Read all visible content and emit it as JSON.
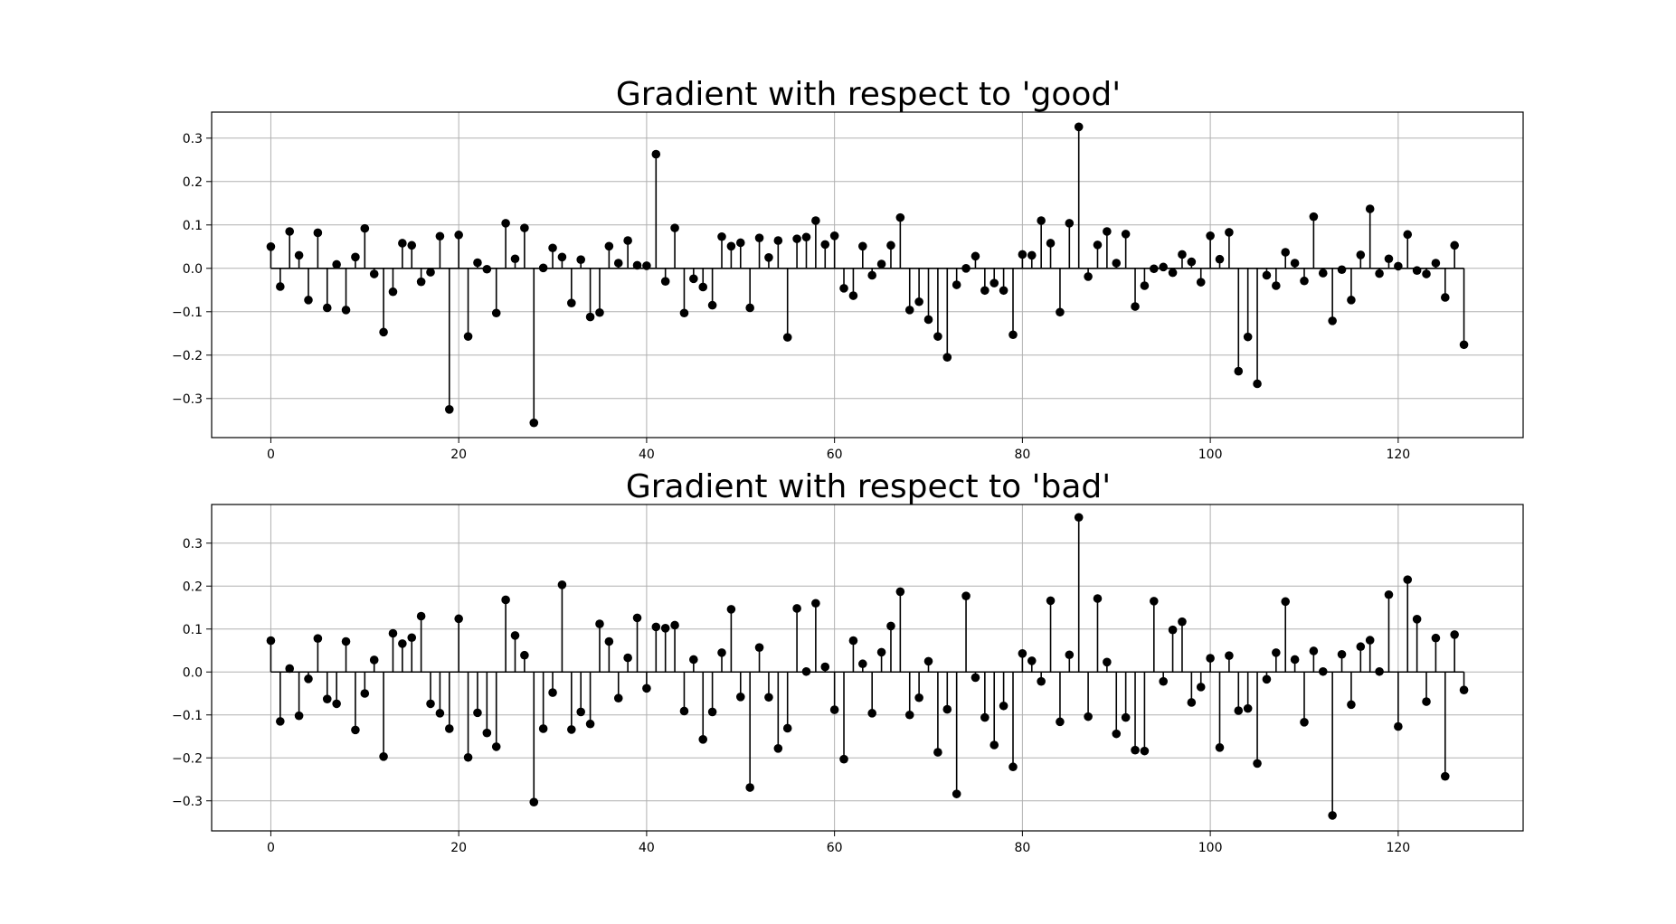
{
  "chart_data": [
    {
      "type": "stem",
      "title": "Gradient with respect to 'good'",
      "xlabel": "",
      "ylabel": "",
      "xlim": [
        -6.3,
        133.3
      ],
      "ylim": [
        -0.39,
        0.36
      ],
      "xticks": [
        0,
        20,
        40,
        60,
        80,
        100,
        120
      ],
      "xtick_labels": [
        "0",
        "20",
        "40",
        "60",
        "80",
        "100",
        "120"
      ],
      "yticks": [
        -0.3,
        -0.2,
        -0.1,
        0.0,
        0.1,
        0.2,
        0.3
      ],
      "ytick_labels": [
        "−0.3",
        "−0.2",
        "−0.1",
        "0.0",
        "0.1",
        "0.2",
        "0.3"
      ],
      "grid": true,
      "color": "#000000",
      "values": [
        0.05,
        -0.042,
        0.085,
        0.03,
        -0.073,
        0.082,
        -0.091,
        0.009,
        -0.096,
        0.026,
        0.092,
        -0.013,
        -0.147,
        -0.054,
        0.058,
        0.053,
        -0.031,
        -0.009,
        0.074,
        -0.325,
        0.077,
        -0.157,
        0.013,
        -0.002,
        -0.103,
        0.104,
        0.022,
        0.093,
        -0.356,
        0.001,
        0.047,
        0.026,
        -0.08,
        0.02,
        -0.112,
        -0.102,
        0.051,
        0.012,
        0.064,
        0.007,
        0.006,
        0.263,
        -0.03,
        0.093,
        -0.103,
        -0.024,
        -0.043,
        -0.085,
        0.073,
        0.051,
        0.059,
        -0.091,
        0.07,
        0.025,
        0.064,
        -0.159,
        0.068,
        0.072,
        0.11,
        0.055,
        0.075,
        -0.046,
        -0.063,
        0.051,
        -0.016,
        0.01,
        0.053,
        0.117,
        -0.096,
        -0.077,
        -0.118,
        -0.157,
        -0.205,
        -0.038,
        0.0,
        0.028,
        -0.051,
        -0.034,
        -0.051,
        -0.153,
        0.032,
        0.03,
        0.11,
        0.058,
        -0.101,
        0.104,
        0.326,
        -0.019,
        0.054,
        0.085,
        0.012,
        0.079,
        -0.088,
        -0.04,
        -0.001,
        0.003,
        -0.01,
        0.032,
        0.015,
        -0.032,
        0.075,
        0.021,
        0.083,
        -0.237,
        -0.158,
        -0.266,
        -0.016,
        -0.04,
        0.037,
        0.012,
        -0.029,
        0.119,
        -0.011,
        -0.121,
        -0.003,
        -0.073,
        0.031,
        0.137,
        -0.012,
        0.022,
        0.005,
        0.078,
        -0.005,
        -0.013,
        0.012,
        -0.067,
        0.053,
        -0.176
      ]
    },
    {
      "type": "stem",
      "title": "Gradient with respect to 'bad'",
      "xlabel": "",
      "ylabel": "",
      "xlim": [
        -6.3,
        133.3
      ],
      "ylim": [
        -0.37,
        0.39
      ],
      "xticks": [
        0,
        20,
        40,
        60,
        80,
        100,
        120
      ],
      "xtick_labels": [
        "0",
        "20",
        "40",
        "60",
        "80",
        "100",
        "120"
      ],
      "yticks": [
        -0.3,
        -0.2,
        -0.1,
        0.0,
        0.1,
        0.2,
        0.3
      ],
      "ytick_labels": [
        "−0.3",
        "−0.2",
        "−0.1",
        "0.0",
        "0.1",
        "0.2",
        "0.3"
      ],
      "grid": true,
      "color": "#000000",
      "values": [
        0.073,
        -0.115,
        0.008,
        -0.102,
        -0.016,
        0.078,
        -0.063,
        -0.074,
        0.071,
        -0.135,
        -0.05,
        0.028,
        -0.197,
        0.09,
        0.066,
        0.08,
        0.13,
        -0.074,
        -0.096,
        -0.132,
        0.124,
        -0.199,
        -0.095,
        -0.142,
        -0.174,
        0.168,
        0.085,
        0.039,
        -0.303,
        -0.132,
        -0.048,
        0.203,
        -0.134,
        -0.093,
        -0.121,
        0.112,
        0.071,
        -0.061,
        0.033,
        0.126,
        -0.038,
        0.105,
        0.102,
        0.109,
        -0.091,
        0.029,
        -0.157,
        -0.093,
        0.045,
        0.146,
        -0.058,
        -0.269,
        0.057,
        -0.059,
        -0.178,
        -0.131,
        0.148,
        0.001,
        0.16,
        0.012,
        -0.088,
        -0.203,
        0.073,
        0.019,
        -0.096,
        0.046,
        0.107,
        0.187,
        -0.1,
        -0.06,
        0.025,
        -0.187,
        -0.087,
        -0.284,
        0.177,
        -0.013,
        -0.106,
        -0.17,
        -0.079,
        -0.221,
        0.043,
        0.026,
        -0.022,
        0.166,
        -0.116,
        0.04,
        0.36,
        -0.104,
        0.171,
        0.023,
        -0.144,
        -0.106,
        -0.182,
        -0.184,
        0.165,
        -0.022,
        0.098,
        0.117,
        -0.071,
        -0.035,
        0.032,
        -0.176,
        0.038,
        -0.09,
        -0.085,
        -0.213,
        -0.017,
        0.045,
        0.164,
        0.029,
        -0.117,
        0.049,
        0.001,
        -0.334,
        0.041,
        -0.076,
        0.059,
        0.074,
        0.001,
        0.18,
        -0.127,
        0.215,
        0.123,
        -0.069,
        0.079,
        -0.243,
        0.087,
        -0.042
      ]
    }
  ]
}
